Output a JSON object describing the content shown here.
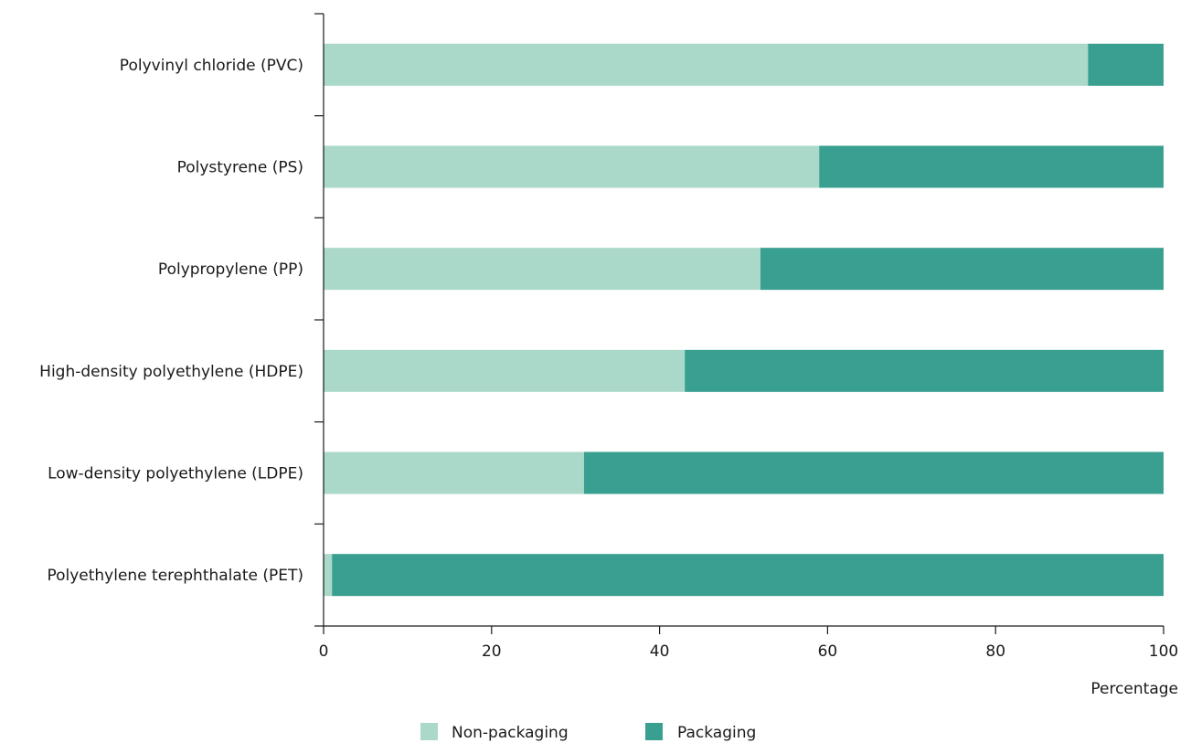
{
  "chart_data": {
    "type": "bar",
    "orientation": "horizontal",
    "stacked": true,
    "title": "",
    "xlabel": "Percentage",
    "ylabel": "",
    "xlim": [
      0,
      100
    ],
    "x_ticks": [
      0,
      20,
      40,
      60,
      80,
      100
    ],
    "grid": false,
    "legend_position": "bottom",
    "categories": [
      "Polyvinyl chloride (PVC)",
      "Polystyrene (PS)",
      "Polypropylene (PP)",
      "High-density polyethylene (HDPE)",
      "Low-density polyethylene (LDPE)",
      "Polyethylene terephthalate (PET)"
    ],
    "series": [
      {
        "name": "Non-packaging",
        "color": "#abd9c9",
        "values": [
          91,
          59,
          52,
          43,
          31,
          1
        ]
      },
      {
        "name": "Packaging",
        "color": "#39a091",
        "values": [
          9,
          41,
          48,
          57,
          69,
          99
        ]
      }
    ]
  }
}
